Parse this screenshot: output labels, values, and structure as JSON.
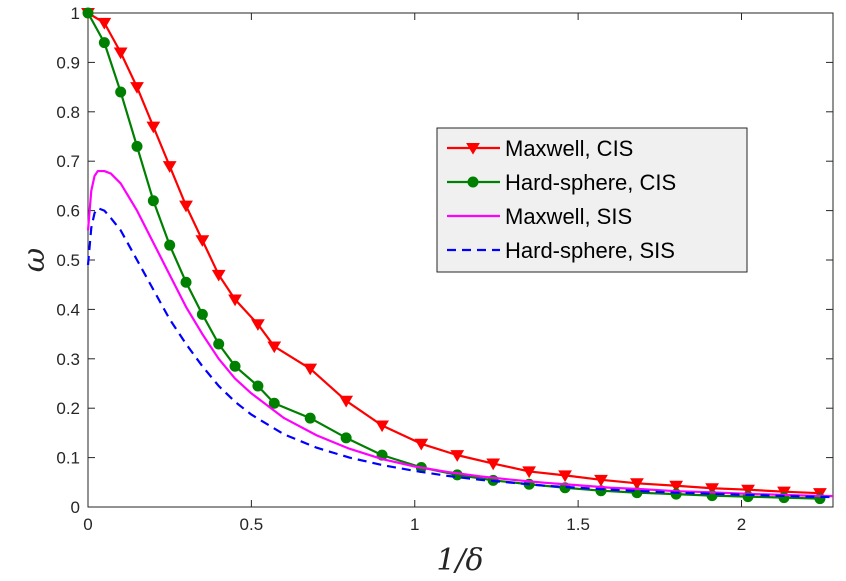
{
  "chart_data": {
    "type": "line",
    "xlabel": "1/δ",
    "ylabel": "ω",
    "xlim": [
      0,
      2.28
    ],
    "ylim": [
      0,
      1
    ],
    "xticks": [
      "0",
      "0.5",
      "1",
      "1.5",
      "2"
    ],
    "xtick_values": [
      0,
      0.5,
      1,
      1.5,
      2
    ],
    "yticks": [
      "0",
      "0.1",
      "0.2",
      "0.3",
      "0.4",
      "0.5",
      "0.6",
      "0.7",
      "0.8",
      "0.9",
      "1"
    ],
    "ytick_values": [
      0,
      0.1,
      0.2,
      0.3,
      0.4,
      0.5,
      0.6,
      0.7,
      0.8,
      0.9,
      1
    ],
    "grid": false,
    "legend_position": "center-right",
    "series": [
      {
        "name": "Maxwell, CIS",
        "color": "#ff0000",
        "marker": "triangle-down",
        "dash": "solid",
        "x": [
          0.0,
          0.05,
          0.1,
          0.15,
          0.2,
          0.25,
          0.3,
          0.35,
          0.4,
          0.45,
          0.52,
          0.57,
          0.68,
          0.79,
          0.9,
          1.02,
          1.13,
          1.24,
          1.35,
          1.46,
          1.57,
          1.68,
          1.8,
          1.91,
          2.02,
          2.13,
          2.24
        ],
        "y": [
          1.0,
          0.98,
          0.92,
          0.85,
          0.77,
          0.69,
          0.61,
          0.54,
          0.47,
          0.42,
          0.37,
          0.325,
          0.28,
          0.215,
          0.165,
          0.128,
          0.105,
          0.088,
          0.072,
          0.064,
          0.055,
          0.048,
          0.043,
          0.038,
          0.035,
          0.031,
          0.028
        ]
      },
      {
        "name": "Hard-sphere, CIS",
        "color": "#008000",
        "marker": "circle",
        "dash": "solid",
        "x": [
          0.0,
          0.05,
          0.1,
          0.15,
          0.2,
          0.25,
          0.3,
          0.35,
          0.4,
          0.45,
          0.52,
          0.57,
          0.68,
          0.79,
          0.9,
          1.02,
          1.13,
          1.24,
          1.35,
          1.46,
          1.57,
          1.68,
          1.8,
          1.91,
          2.02,
          2.13,
          2.24
        ],
        "y": [
          1.0,
          0.94,
          0.84,
          0.73,
          0.62,
          0.53,
          0.455,
          0.39,
          0.33,
          0.285,
          0.245,
          0.21,
          0.18,
          0.14,
          0.105,
          0.08,
          0.065,
          0.054,
          0.046,
          0.039,
          0.033,
          0.029,
          0.026,
          0.023,
          0.021,
          0.019,
          0.017
        ]
      },
      {
        "name": "Maxwell, SIS",
        "color": "#ff00ff",
        "marker": "none",
        "dash": "solid",
        "x": [
          0.0,
          0.01,
          0.02,
          0.03,
          0.05,
          0.07,
          0.1,
          0.15,
          0.2,
          0.25,
          0.3,
          0.35,
          0.4,
          0.45,
          0.5,
          0.6,
          0.7,
          0.8,
          0.9,
          1.0,
          1.1,
          1.2,
          1.3,
          1.4,
          1.5,
          1.6,
          1.7,
          1.8,
          1.9,
          2.0,
          2.1,
          2.2,
          2.28
        ],
        "y": [
          0.56,
          0.64,
          0.67,
          0.68,
          0.68,
          0.675,
          0.655,
          0.6,
          0.535,
          0.47,
          0.405,
          0.35,
          0.3,
          0.26,
          0.23,
          0.18,
          0.145,
          0.118,
          0.097,
          0.082,
          0.071,
          0.062,
          0.055,
          0.049,
          0.044,
          0.039,
          0.036,
          0.032,
          0.03,
          0.027,
          0.025,
          0.023,
          0.022
        ]
      },
      {
        "name": "Hard-sphere, SIS",
        "color": "#0000ff",
        "marker": "none",
        "dash": "dashed",
        "x": [
          0.0,
          0.01,
          0.02,
          0.03,
          0.05,
          0.07,
          0.1,
          0.15,
          0.2,
          0.25,
          0.3,
          0.35,
          0.4,
          0.45,
          0.5,
          0.6,
          0.7,
          0.8,
          0.9,
          1.0,
          1.1,
          1.2,
          1.3,
          1.4,
          1.5,
          1.6,
          1.7,
          1.8,
          1.9,
          2.0,
          2.1,
          2.2,
          2.28
        ],
        "y": [
          0.49,
          0.565,
          0.595,
          0.605,
          0.6,
          0.585,
          0.56,
          0.5,
          0.44,
          0.38,
          0.33,
          0.285,
          0.245,
          0.213,
          0.187,
          0.147,
          0.12,
          0.1,
          0.085,
          0.073,
          0.063,
          0.055,
          0.049,
          0.043,
          0.039,
          0.035,
          0.032,
          0.029,
          0.027,
          0.025,
          0.023,
          0.021,
          0.02
        ]
      }
    ]
  }
}
